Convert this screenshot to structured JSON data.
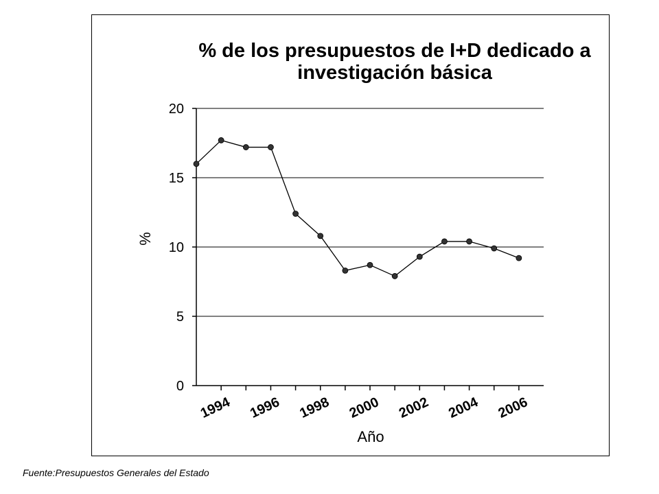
{
  "chart_data": {
    "type": "line",
    "title_lines": [
      "% de los presupuestos de I+D dedicado a",
      "investigación básica"
    ],
    "xlabel": "Año",
    "ylabel": "%",
    "x": [
      1993,
      1994,
      1995,
      1996,
      1997,
      1998,
      1999,
      2000,
      2001,
      2002,
      2003,
      2004,
      2005,
      2006
    ],
    "x_tick_labels": [
      "1994",
      "1996",
      "1998",
      "2000",
      "2002",
      "2004",
      "2006"
    ],
    "xlim": [
      1993,
      2007
    ],
    "series": [
      {
        "values": [
          16.0,
          17.7,
          17.2,
          17.2,
          12.4,
          10.8,
          8.3,
          8.7,
          7.9,
          9.3,
          10.4,
          10.4,
          9.9,
          9.2
        ]
      }
    ],
    "ylim": [
      0,
      20
    ],
    "y_ticks": [
      0,
      5,
      10,
      15,
      20
    ],
    "grid": true,
    "line_color": "#000000",
    "marker_color": "#333333"
  },
  "source_note": "Fuente:Presupuestos Generales del Estado"
}
